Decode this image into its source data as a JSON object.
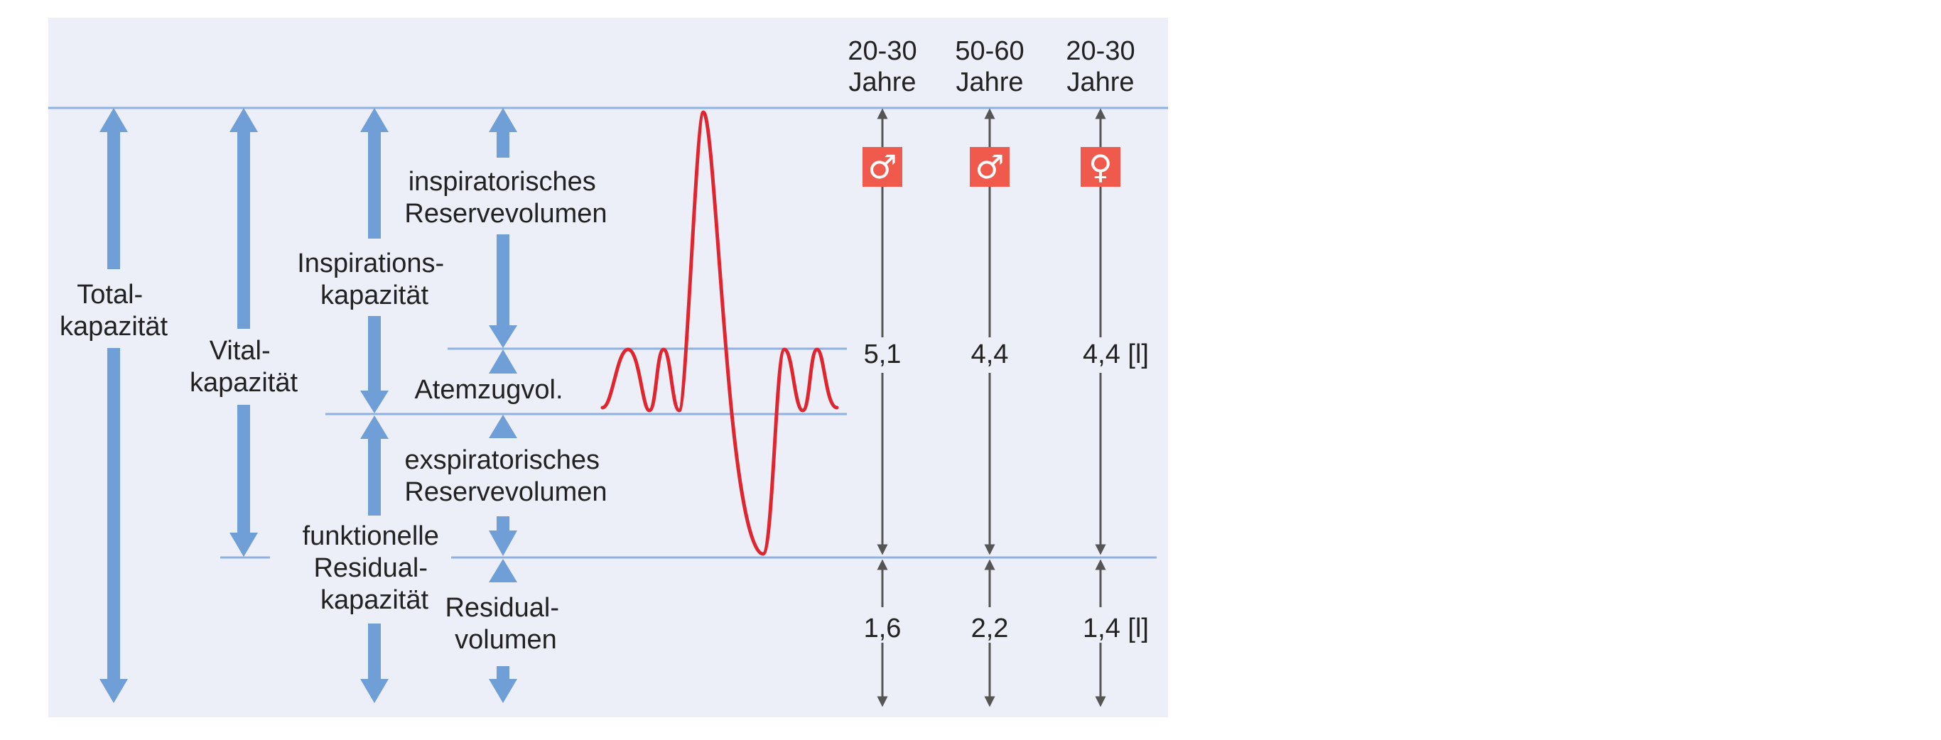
{
  "colors": {
    "panel_bg": "#eceef8",
    "blue_arrow": "#6f9fd6",
    "guide_line": "#8fb2e0",
    "curve": "#e0252f",
    "value_arrow": "#555555",
    "badge": "#ef5a4c"
  },
  "capacities": {
    "total": [
      "Total-",
      "kapazität"
    ],
    "vital": [
      "Vital-",
      "kapazität"
    ],
    "inspiration": [
      "Inspirations-",
      "kapazität"
    ],
    "functional_residual": [
      "funktionelle",
      "Residual-",
      "kapazität"
    ]
  },
  "volumes": {
    "inspiratory_reserve": [
      "inspiratorisches",
      "Reservevolumen"
    ],
    "tidal": "Atemzugvol.",
    "expiratory_reserve": [
      "exspiratorisches",
      "Reservevolumen"
    ],
    "residual": [
      "Residual-",
      "volumen"
    ]
  },
  "columns": [
    {
      "age_range": "20-30",
      "age_unit": "Jahre",
      "sex_icon": "male-icon",
      "sex_symbol": "♂",
      "vital_capacity": "5,1",
      "residual_volume": "1,6"
    },
    {
      "age_range": "50-60",
      "age_unit": "Jahre",
      "sex_icon": "male-icon",
      "sex_symbol": "♂",
      "vital_capacity": "4,4",
      "residual_volume": "2,2"
    },
    {
      "age_range": "20-30",
      "age_unit": "Jahre",
      "sex_icon": "female-icon",
      "sex_symbol": "♀",
      "vital_capacity": "4,4 [l]",
      "residual_volume": "1,4 [l]"
    }
  ]
}
